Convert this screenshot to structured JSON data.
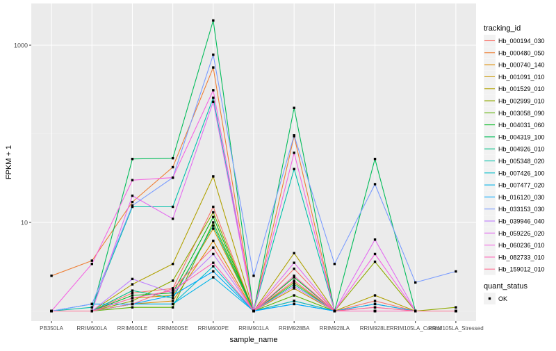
{
  "chart_data": {
    "type": "line",
    "title": "",
    "xlabel": "sample_name",
    "ylabel": "FPKM + 1",
    "yscale": "log10",
    "ylim": [
      1,
      2000
    ],
    "yticks": [
      {
        "value": 10,
        "label": "10"
      },
      {
        "value": 1000,
        "label": "1000"
      }
    ],
    "grid": true,
    "legend_position": "right",
    "categories": [
      "PB350LA",
      "RRIM600LA",
      "RRIM600LE",
      "RRIM600SE",
      "RRIM600PE",
      "RRIM901LA",
      "RRIM928BA",
      "RRIM928LA",
      "RRIM928LE",
      "RRIM105LA_Control",
      "RRIM105LA_Stressed"
    ],
    "legend_title": "tracking_id",
    "series": [
      {
        "name": "Hb_000194_030",
        "color": "#F8766D",
        "values": [
          1.0,
          1.0,
          1.6,
          1.8,
          15,
          1.0,
          3.0,
          1.0,
          1.3,
          1.0,
          1.0
        ]
      },
      {
        "name": "Hb_000480_050",
        "color": "#EE7F35",
        "values": [
          2.5,
          3.7,
          17,
          42,
          560,
          1.0,
          94,
          1.0,
          1.0,
          1.0,
          1.0
        ]
      },
      {
        "name": "Hb_000740_140",
        "color": "#DE8C00",
        "values": [
          1.0,
          1.0,
          1.2,
          1.3,
          6.2,
          1.0,
          1.3,
          1.0,
          1.0,
          1.0,
          1.0
        ]
      },
      {
        "name": "Hb_001091_010",
        "color": "#C99800",
        "values": [
          1.0,
          1.0,
          1.4,
          1.5,
          8.5,
          1.0,
          1.8,
          1.0,
          1.2,
          1.0,
          1.0
        ]
      },
      {
        "name": "Hb_001529_010",
        "color": "#B0A100",
        "values": [
          1.0,
          1.0,
          2.0,
          3.4,
          33,
          1.0,
          4.5,
          1.0,
          1.5,
          1.0,
          1.0
        ]
      },
      {
        "name": "Hb_002999_010",
        "color": "#8FAA00",
        "values": [
          1.0,
          1.0,
          1.3,
          2.2,
          13,
          1.0,
          2.1,
          1.0,
          3.6,
          1.0,
          1.1
        ]
      },
      {
        "name": "Hb_003058_090",
        "color": "#5BB300",
        "values": [
          1.0,
          1.0,
          1.1,
          1.1,
          10,
          1.0,
          1.5,
          1.0,
          1.0,
          1.0,
          1.0
        ]
      },
      {
        "name": "Hb_004031_060",
        "color": "#00B81F",
        "values": [
          1.0,
          1.0,
          1.5,
          1.6,
          11.5,
          1.0,
          2.4,
          1.0,
          1.0,
          1.0,
          1.0
        ]
      },
      {
        "name": "Hb_004319_100",
        "color": "#00BC59",
        "values": [
          1.0,
          1.0,
          52,
          53,
          1900,
          1.0,
          196,
          1.0,
          52,
          1.0,
          1.0
        ]
      },
      {
        "name": "Hb_004926_010",
        "color": "#00BF85",
        "values": [
          1.0,
          1.0,
          1.7,
          1.4,
          9.2,
          1.0,
          2.0,
          1.0,
          1.0,
          1.0,
          1.0
        ]
      },
      {
        "name": "Hb_005348_020",
        "color": "#00C0AA",
        "values": [
          1.0,
          1.1,
          15,
          15,
          255,
          1.0,
          40,
          1.0,
          1.0,
          1.0,
          1.0
        ]
      },
      {
        "name": "Hb_007426_100",
        "color": "#00BDCB",
        "values": [
          1.0,
          1.0,
          1.2,
          1.2,
          3.2,
          1.0,
          1.3,
          1.0,
          1.0,
          1.0,
          1.0
        ]
      },
      {
        "name": "Hb_007477_020",
        "color": "#00B5E8",
        "values": [
          1.0,
          1.0,
          1.2,
          1.2,
          2.4,
          1.0,
          1.2,
          1.0,
          1.0,
          1.0,
          1.0
        ]
      },
      {
        "name": "Hb_016120_030",
        "color": "#00A9FF",
        "values": [
          1.0,
          1.2,
          1.2,
          1.5,
          2.8,
          1.0,
          1.2,
          1.0,
          1.2,
          1.0,
          1.0
        ]
      },
      {
        "name": "Hb_033153_030",
        "color": "#7A9CFF",
        "values": [
          1.0,
          1.2,
          15.5,
          32,
          780,
          2.5,
          96,
          3.4,
          27,
          2.1,
          2.8
        ]
      },
      {
        "name": "Hb_039946_040",
        "color": "#BF7FFF",
        "values": [
          1.0,
          1.0,
          2.3,
          1.6,
          4.4,
          1.0,
          1.9,
          1.0,
          1.1,
          1.0,
          1.0
        ]
      },
      {
        "name": "Hb_059226_020",
        "color": "#E36CF0",
        "values": [
          1.0,
          1.0,
          20,
          11,
          230,
          1.0,
          3.5,
          1.0,
          6.4,
          1.0,
          1.0
        ]
      },
      {
        "name": "Hb_060236_010",
        "color": "#F564E3",
        "values": [
          1.0,
          3.4,
          30,
          32,
          310,
          1.0,
          61,
          1.0,
          4.4,
          1.0,
          1.0
        ]
      },
      {
        "name": "Hb_082733_010",
        "color": "#FF63B6",
        "values": [
          1.0,
          1.0,
          1.4,
          1.7,
          3.5,
          1.0,
          2.5,
          1.0,
          1.0,
          1.0,
          1.0
        ]
      },
      {
        "name": "Hb_159012_010",
        "color": "#FF6C90",
        "values": [
          1.0,
          1.0,
          1.2,
          1.8,
          5.2,
          1.0,
          2.2,
          1.0,
          1.1,
          1.0,
          1.0
        ]
      }
    ],
    "shape_legend": {
      "title": "quant_status",
      "items": [
        {
          "label": "OK"
        }
      ]
    }
  }
}
